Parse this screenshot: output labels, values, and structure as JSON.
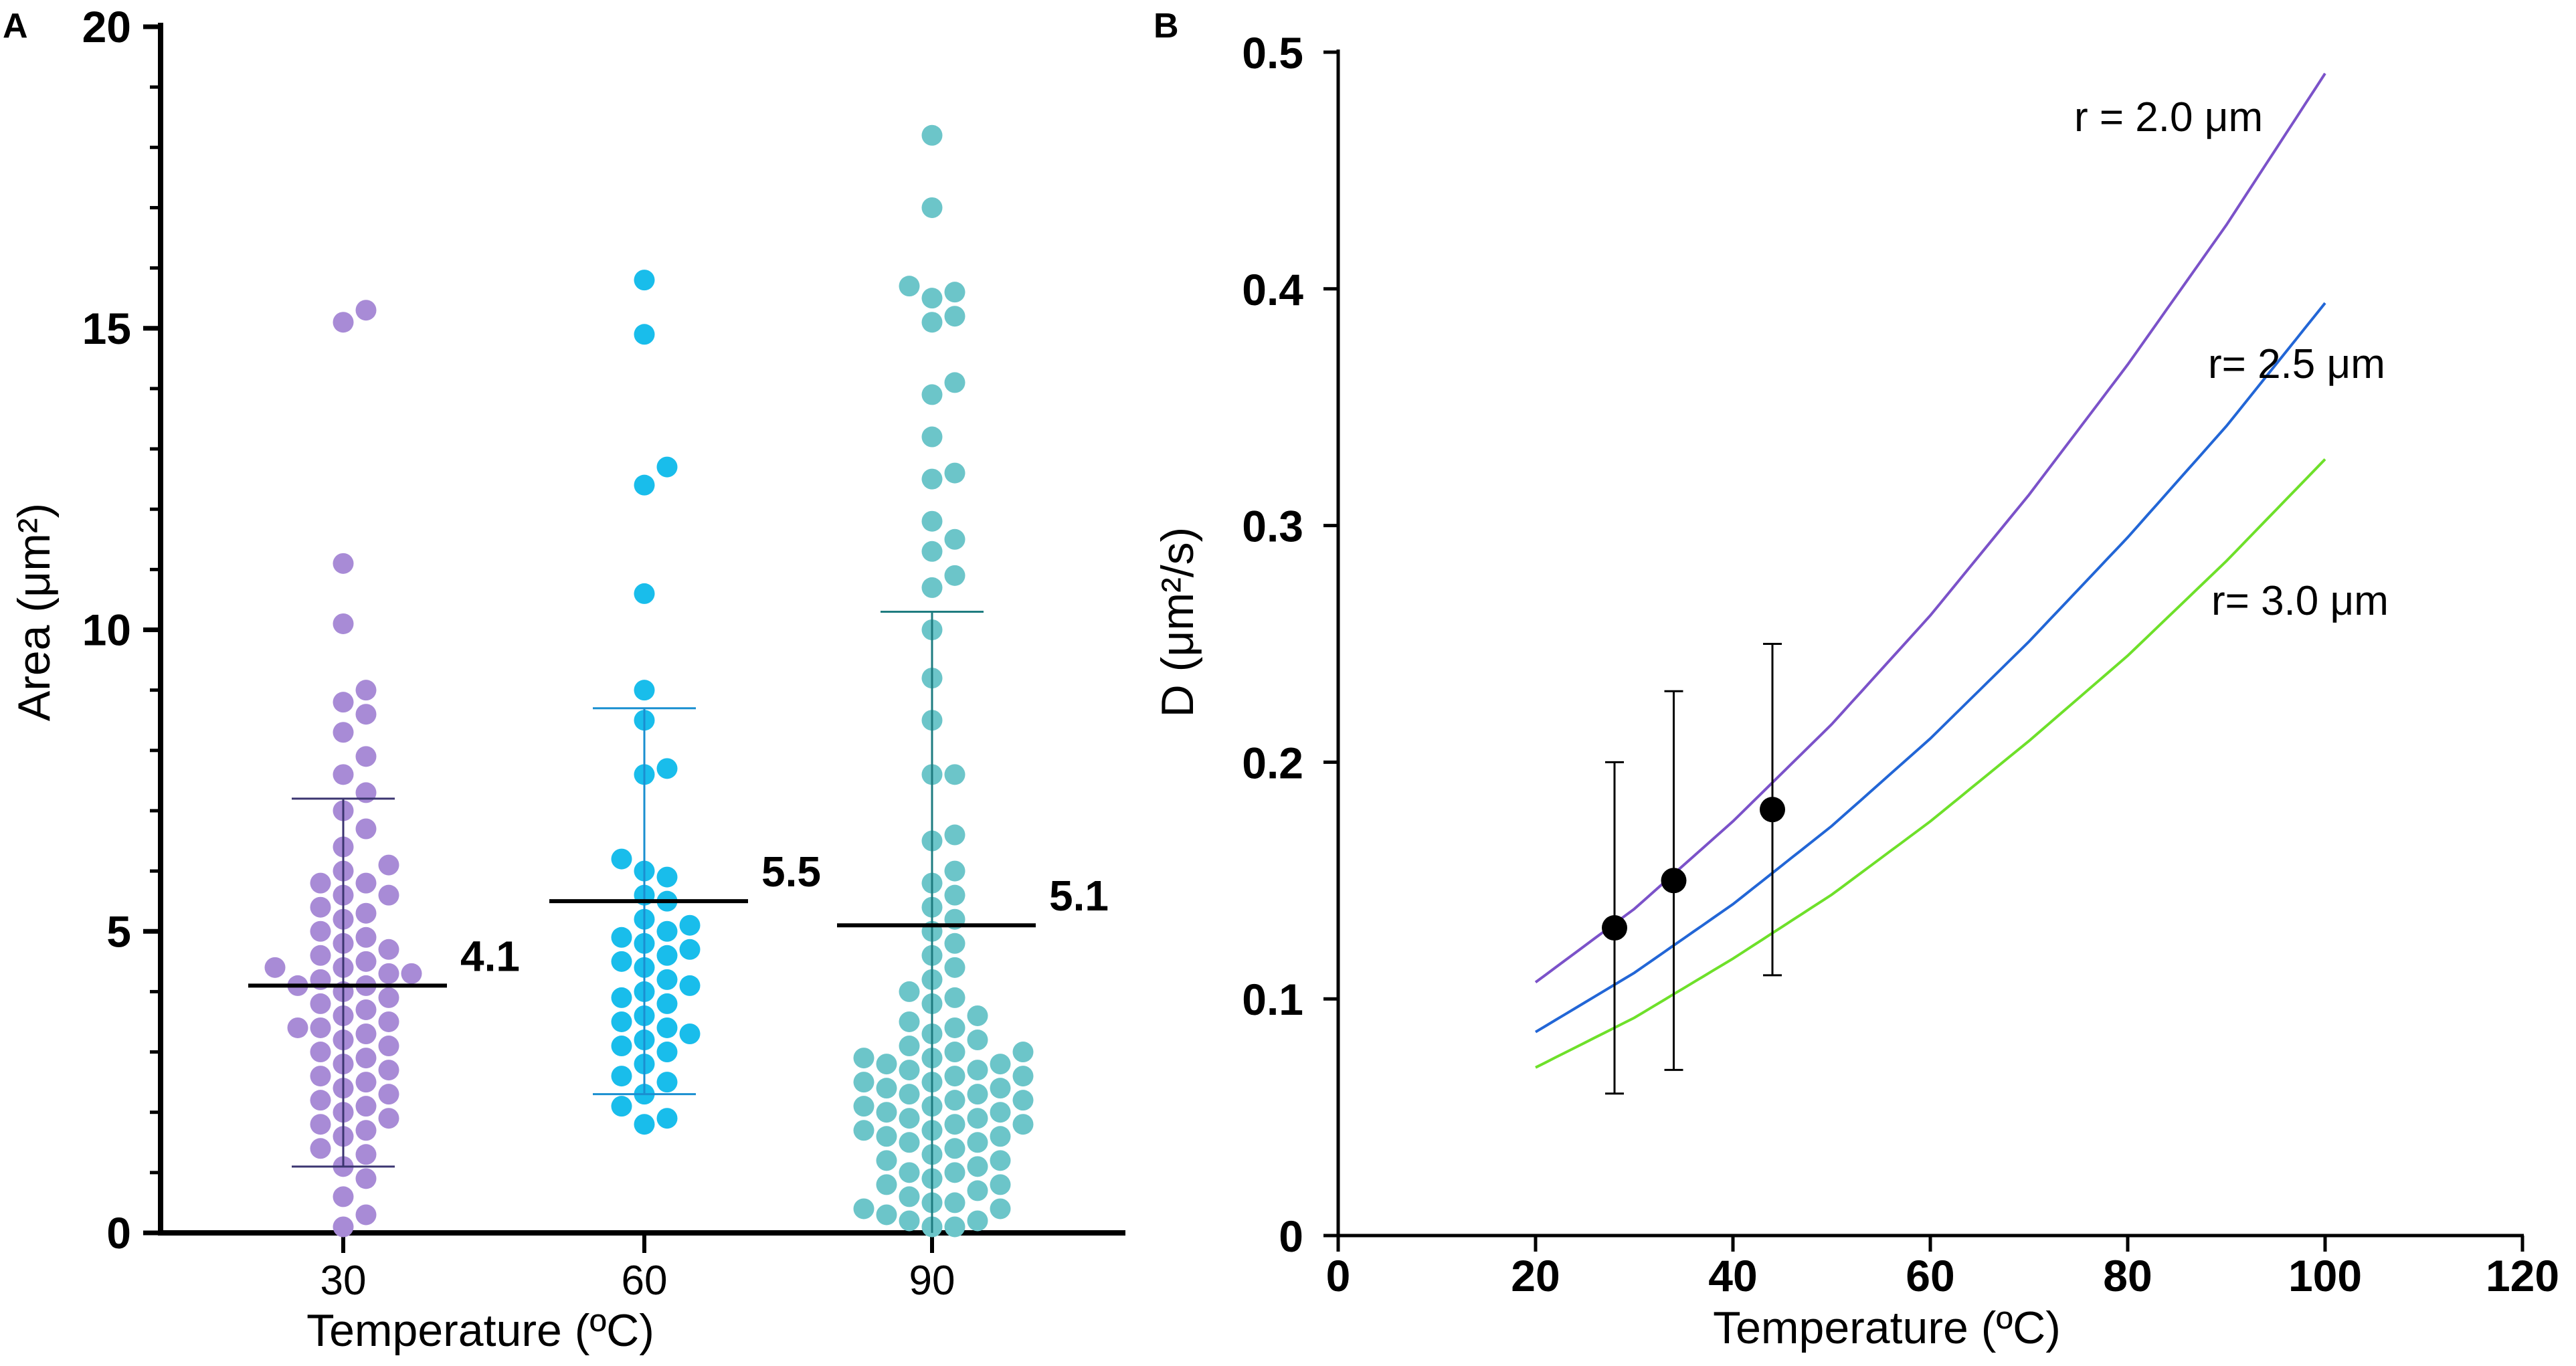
{
  "chart_data": [
    {
      "panel": "A",
      "type": "scatter",
      "xlabel": "Temperature (ºC)",
      "ylabel": "Area (μm²)",
      "ylim": [
        0,
        20
      ],
      "yticks": [
        0,
        5,
        10,
        15,
        20
      ],
      "categories": [
        "30",
        "60",
        "90"
      ],
      "groups": [
        {
          "category": "30",
          "color": "#A88BD6",
          "mean": 4.1,
          "mean_label": "4.1",
          "sd_low": 1.1,
          "sd_high": 7.2,
          "values": [
            15.3,
            15.1,
            11.1,
            10.1,
            9.0,
            8.8,
            8.6,
            8.3,
            7.9,
            7.6,
            7.3,
            7.0,
            6.7,
            6.4,
            6.1,
            6.0,
            5.8,
            5.8,
            5.6,
            5.6,
            5.4,
            5.3,
            5.2,
            5.0,
            4.9,
            4.8,
            4.7,
            4.6,
            4.5,
            4.4,
            4.4,
            4.3,
            4.3,
            4.2,
            4.1,
            4.1,
            4.0,
            3.9,
            3.8,
            3.7,
            3.6,
            3.5,
            3.4,
            3.4,
            3.3,
            3.2,
            3.1,
            3.0,
            2.9,
            2.8,
            2.7,
            2.6,
            2.5,
            2.4,
            2.3,
            2.2,
            2.1,
            2.0,
            1.9,
            1.8,
            1.7,
            1.6,
            1.4,
            1.3,
            1.1,
            0.9,
            0.6,
            0.3,
            0.1
          ]
        },
        {
          "category": "60",
          "color": "#19BDEB",
          "mean": 5.5,
          "mean_label": "5.5",
          "sd_low": 2.3,
          "sd_high": 8.7,
          "values": [
            15.8,
            14.9,
            12.7,
            12.4,
            10.6,
            9.0,
            8.5,
            7.7,
            7.6,
            6.2,
            6.0,
            5.9,
            5.6,
            5.5,
            5.2,
            5.1,
            5.0,
            4.9,
            4.8,
            4.7,
            4.6,
            4.5,
            4.4,
            4.2,
            4.1,
            4.0,
            3.9,
            3.8,
            3.6,
            3.5,
            3.4,
            3.3,
            3.2,
            3.1,
            3.0,
            2.8,
            2.6,
            2.5,
            2.3,
            2.1,
            1.9,
            1.8
          ]
        },
        {
          "category": "90",
          "color": "#6CC5C9",
          "mean": 5.1,
          "mean_label": "5.1",
          "sd_low": 0.0,
          "sd_high": 10.3,
          "values": [
            18.2,
            17.0,
            15.7,
            15.6,
            15.5,
            15.2,
            15.1,
            14.1,
            13.9,
            13.2,
            12.6,
            12.5,
            11.8,
            11.5,
            11.3,
            10.9,
            10.7,
            10.0,
            9.2,
            8.5,
            7.6,
            7.6,
            6.6,
            6.5,
            6.0,
            5.8,
            5.6,
            5.4,
            5.2,
            5.0,
            4.8,
            4.6,
            4.4,
            4.2,
            4.0,
            3.9,
            3.8,
            3.6,
            3.5,
            3.4,
            3.3,
            3.2,
            3.1,
            3.0,
            3.0,
            2.9,
            2.9,
            2.8,
            2.8,
            2.7,
            2.7,
            2.6,
            2.6,
            2.5,
            2.5,
            2.4,
            2.4,
            2.3,
            2.3,
            2.2,
            2.2,
            2.1,
            2.1,
            2.0,
            2.0,
            1.9,
            1.9,
            1.8,
            1.8,
            1.7,
            1.7,
            1.6,
            1.6,
            1.5,
            1.5,
            1.4,
            1.3,
            1.2,
            1.2,
            1.1,
            1.0,
            1.0,
            0.9,
            0.8,
            0.8,
            0.7,
            0.6,
            0.5,
            0.5,
            0.4,
            0.4,
            0.3,
            0.2,
            0.2,
            0.1,
            0.1
          ]
        }
      ]
    },
    {
      "panel": "B",
      "type": "line",
      "xlabel": "Temperature (ºC)",
      "ylabel": "D (μm²/s)",
      "xlim": [
        0,
        120
      ],
      "ylim": [
        0,
        0.5
      ],
      "xticks": [
        0,
        20,
        40,
        60,
        80,
        100,
        120
      ],
      "yticks": [
        0,
        0.1,
        0.2,
        0.3,
        0.4,
        0.5
      ],
      "ytick_labels": [
        "0",
        "0.1",
        "0.2",
        "0.3",
        "0.4",
        "0.5"
      ],
      "series": [
        {
          "name": "r = 2.0 μm",
          "color": "#7B52C9",
          "x": [
            20,
            30,
            40,
            50,
            60,
            70,
            80,
            90,
            100
          ],
          "y": [
            0.107,
            0.138,
            0.175,
            0.216,
            0.262,
            0.313,
            0.368,
            0.427,
            0.491
          ]
        },
        {
          "name": "r= 2.5 μm",
          "color": "#2266D6",
          "x": [
            20,
            30,
            40,
            50,
            60,
            70,
            80,
            90,
            100
          ],
          "y": [
            0.086,
            0.111,
            0.14,
            0.173,
            0.21,
            0.251,
            0.295,
            0.342,
            0.394
          ]
        },
        {
          "name": "r= 3.0 μm",
          "color": "#6EE02A",
          "x": [
            20,
            30,
            40,
            50,
            60,
            70,
            80,
            90,
            100
          ],
          "y": [
            0.071,
            0.092,
            0.117,
            0.144,
            0.175,
            0.209,
            0.245,
            0.285,
            0.328
          ]
        }
      ],
      "points": [
        {
          "x": 28,
          "y": 0.13,
          "err_low": 0.06,
          "err_high": 0.2
        },
        {
          "x": 34,
          "y": 0.15,
          "err_low": 0.07,
          "err_high": 0.23
        },
        {
          "x": 44,
          "y": 0.18,
          "err_low": 0.11,
          "err_high": 0.25
        }
      ]
    }
  ]
}
